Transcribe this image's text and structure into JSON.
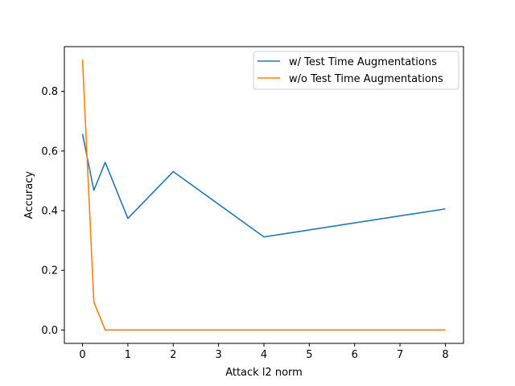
{
  "chart_data": {
    "type": "line",
    "title": "",
    "xlabel": "Attack l2 norm",
    "ylabel": "Accuracy",
    "xlim": [
      -0.4,
      8.4
    ],
    "ylim": [
      -0.045,
      0.95
    ],
    "xticks": [
      0,
      1,
      2,
      3,
      4,
      5,
      6,
      7,
      8
    ],
    "yticks": [
      0.0,
      0.2,
      0.4,
      0.6,
      0.8
    ],
    "ytick_labels": [
      "0.0",
      "0.2",
      "0.4",
      "0.6",
      "0.8"
    ],
    "grid": false,
    "legend_position": "top-right",
    "series": [
      {
        "name": "w/ Test Time Augmentations",
        "color": "#1f77b4",
        "x": [
          0,
          0.25,
          0.5,
          1,
          2,
          4,
          8
        ],
        "y": [
          0.657,
          0.468,
          0.562,
          0.374,
          0.531,
          0.312,
          0.406
        ]
      },
      {
        "name": "w/o Test Time Augmentations",
        "color": "#ff7f0e",
        "x": [
          0,
          0.25,
          0.5,
          1,
          2,
          4,
          8
        ],
        "y": [
          0.906,
          0.094,
          0.0,
          0.0,
          0.0,
          0.0,
          0.0
        ]
      }
    ]
  }
}
